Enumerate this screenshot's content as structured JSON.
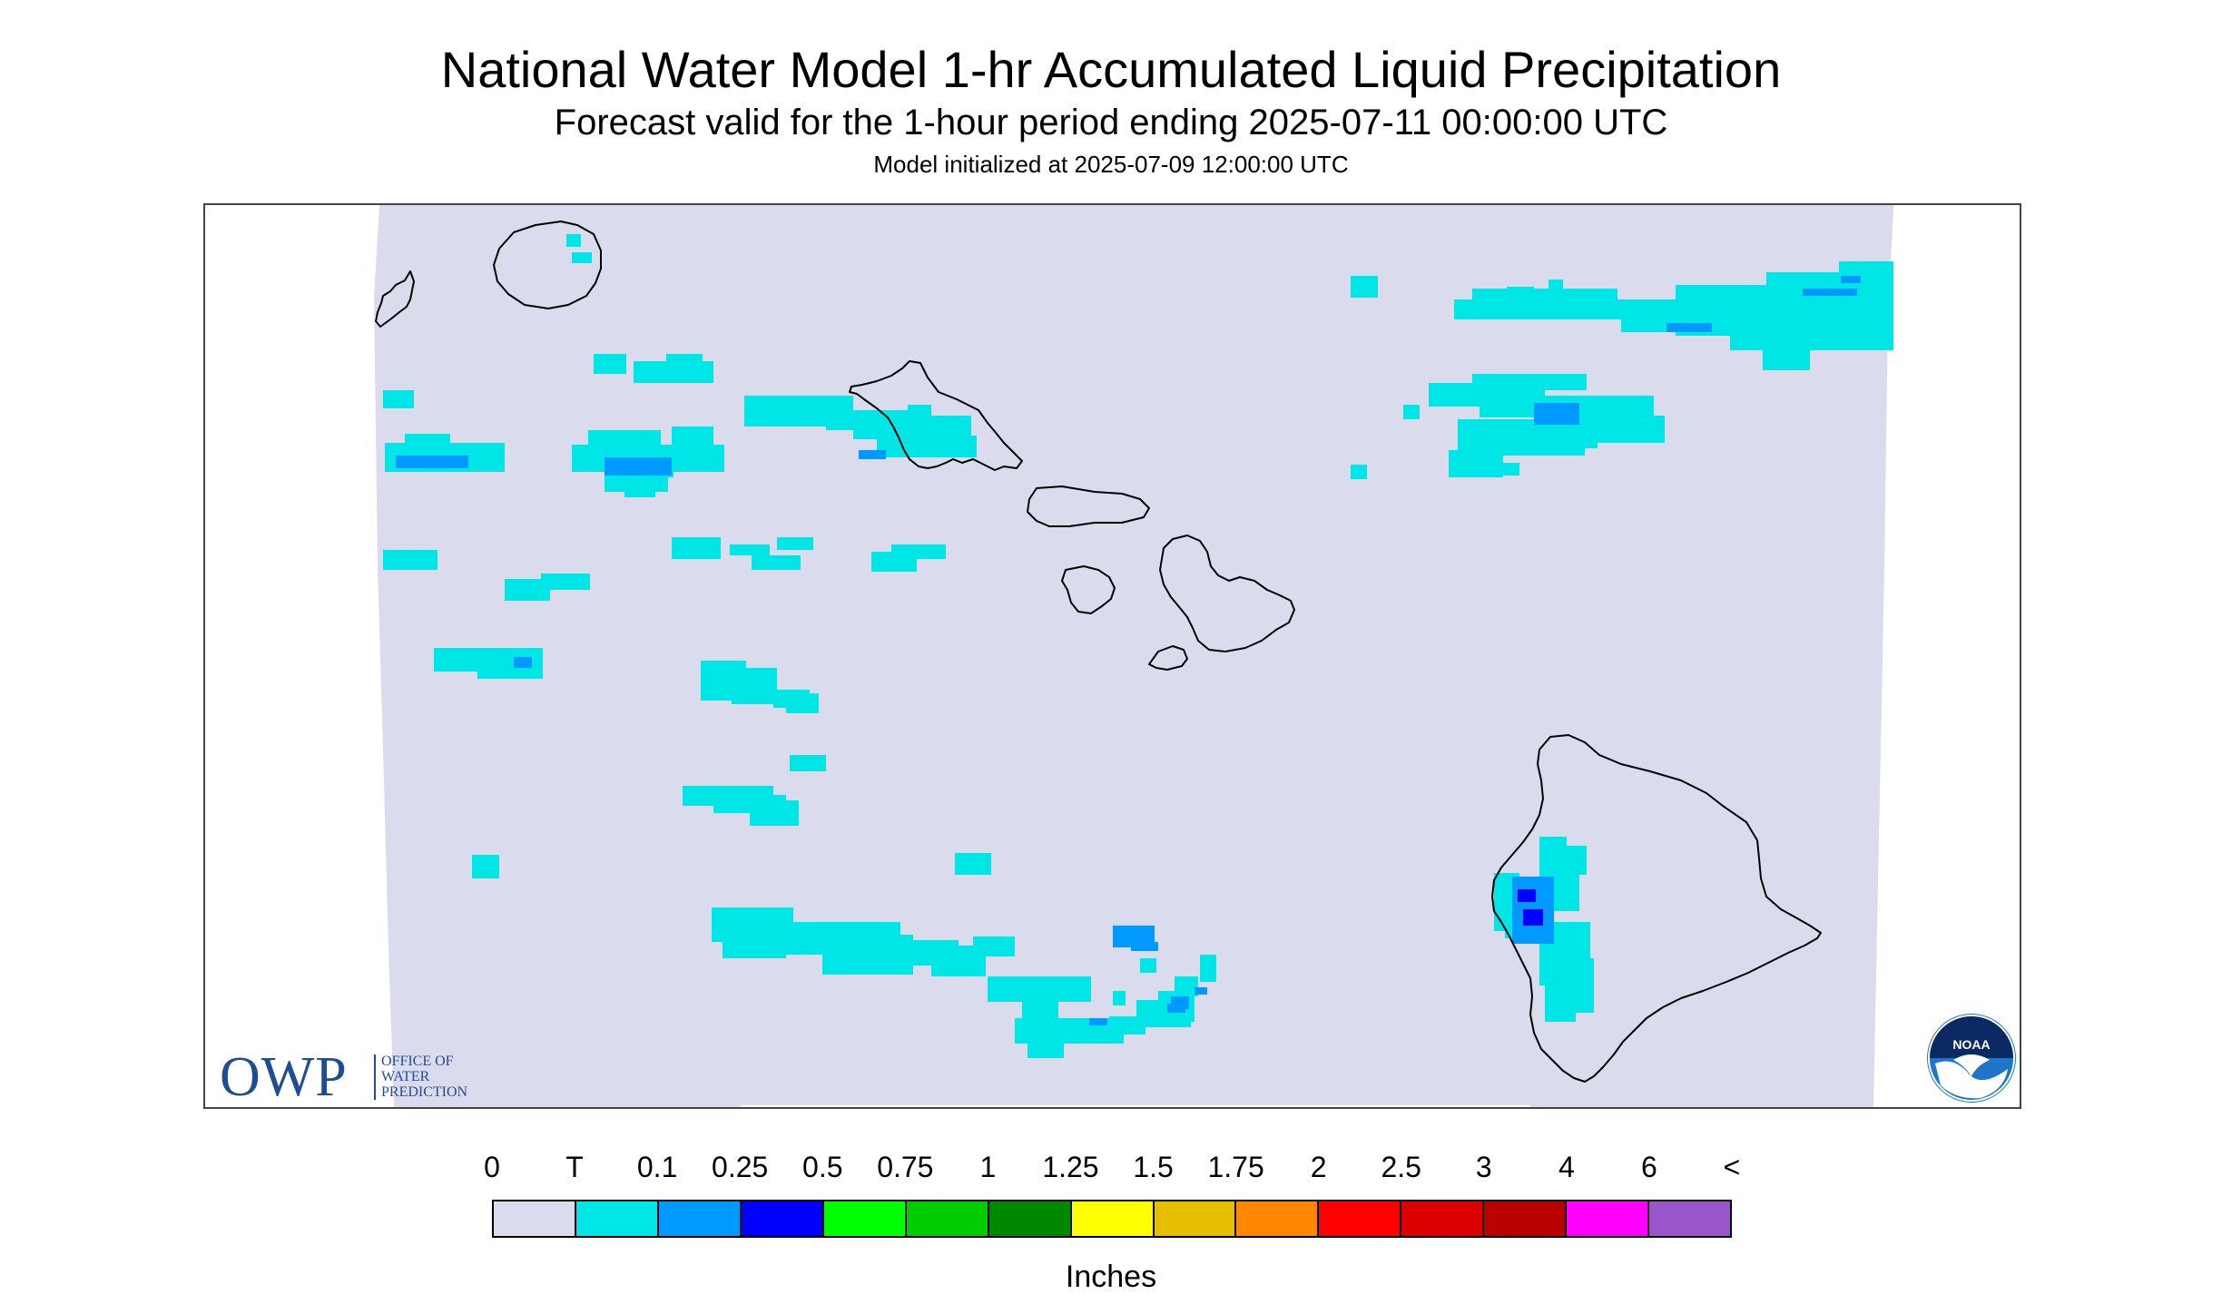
{
  "header": {
    "title": "National Water Model 1-hr Accumulated Liquid Precipitation",
    "subtitle": "Forecast valid for the 1-hour period ending 2025-07-11 00:00:00 UTC",
    "init": "Model initialized at 2025-07-09 12:00:00 UTC"
  },
  "map": {
    "background_color": "#dadcee",
    "coastline_color": "#000000",
    "islands": [
      "Kauai",
      "Niihau",
      "Oahu",
      "Molokai",
      "Lanai",
      "Maui",
      "Kahoolawe",
      "Hawaii"
    ]
  },
  "logos": {
    "owp_mark": "OWP",
    "owp_line1": "OFFICE OF",
    "owp_line2": "WATER",
    "owp_line3": "PREDICTION",
    "noaa_mark": "NOAA"
  },
  "legend": {
    "labels": [
      "0",
      "T",
      "0.1",
      "0.25",
      "0.5",
      "0.75",
      "1",
      "1.25",
      "1.5",
      "1.75",
      "2",
      "2.5",
      "3",
      "4",
      "6",
      "<"
    ],
    "colors": [
      "#dadcee",
      "#00e6e6",
      "#0099ff",
      "#0000ff",
      "#00ff00",
      "#00cc00",
      "#008800",
      "#ffff00",
      "#e6bf00",
      "#ff8800",
      "#ff0000",
      "#dd0000",
      "#bb0000",
      "#ff00ff",
      "#9955cc"
    ],
    "units": "Inches"
  }
}
